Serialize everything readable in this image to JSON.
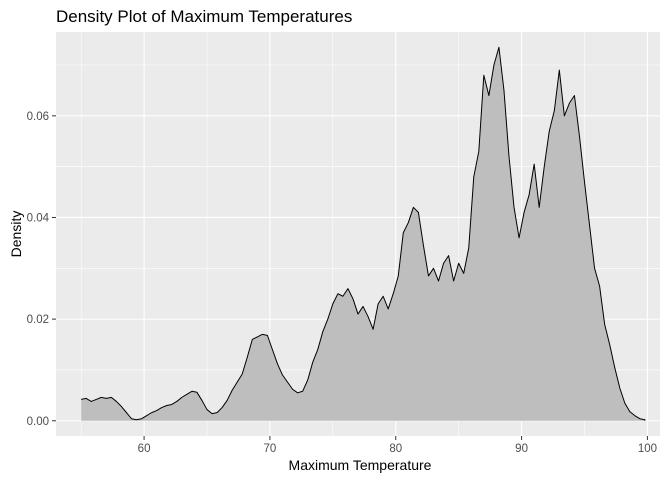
{
  "chart_data": {
    "type": "area",
    "title": "Density Plot of Maximum Temperatures",
    "xlabel": "Maximum Temperature",
    "ylabel": "Density",
    "xlim": [
      53,
      101
    ],
    "ylim": [
      -0.003,
      0.0765
    ],
    "x_ticks": [
      60,
      70,
      80,
      90,
      100
    ],
    "y_ticks": [
      0.0,
      0.02,
      0.04,
      0.06
    ],
    "x_tick_labels": [
      "60",
      "70",
      "80",
      "90",
      "100"
    ],
    "y_tick_labels": [
      "0.00",
      "0.02",
      "0.04",
      "0.06"
    ],
    "grid": true,
    "legend": "none",
    "colors": {
      "panel": "#EBEBEB",
      "grid_major": "#FFFFFF",
      "fill": "#BEBEBE",
      "line": "#000000",
      "tick": "#333333"
    },
    "series": [
      {
        "x": [
          55,
          55.4,
          55.8,
          56.2,
          56.6,
          57.0,
          57.4,
          57.8,
          58.2,
          58.6,
          59.0,
          59.4,
          59.8,
          60.2,
          60.6,
          61.0,
          61.4,
          61.8,
          62.2,
          62.6,
          63.0,
          63.4,
          63.8,
          64.2,
          64.6,
          65.0,
          65.4,
          65.8,
          66.2,
          66.6,
          67.0,
          67.4,
          67.8,
          68.2,
          68.6,
          69.0,
          69.4,
          69.8,
          70.2,
          70.6,
          71.0,
          71.4,
          71.8,
          72.2,
          72.6,
          73.0,
          73.4,
          73.8,
          74.2,
          74.6,
          75.0,
          75.4,
          75.8,
          76.2,
          76.6,
          77.0,
          77.4,
          77.8,
          78.2,
          78.6,
          79.0,
          79.4,
          79.8,
          80.2,
          80.6,
          81.0,
          81.4,
          81.8,
          82.2,
          82.6,
          83.0,
          83.4,
          83.8,
          84.2,
          84.6,
          85.0,
          85.4,
          85.8,
          86.2,
          86.6,
          87.0,
          87.4,
          87.8,
          88.2,
          88.6,
          89.0,
          89.4,
          89.8,
          90.2,
          90.6,
          91.0,
          91.4,
          91.8,
          92.2,
          92.6,
          93.0,
          93.4,
          93.8,
          94.2,
          94.6,
          95.0,
          95.4,
          95.8,
          96.2,
          96.6,
          97.0,
          97.4,
          97.8,
          98.2,
          98.6,
          99.0,
          99.4,
          99.8
        ],
        "y": [
          0.0042,
          0.0044,
          0.0038,
          0.0042,
          0.0046,
          0.0044,
          0.0046,
          0.0038,
          0.0028,
          0.0016,
          0.0004,
          0.0002,
          0.0004,
          0.001,
          0.0016,
          0.002,
          0.0026,
          0.003,
          0.0032,
          0.0038,
          0.0046,
          0.0052,
          0.0058,
          0.0056,
          0.004,
          0.0022,
          0.0014,
          0.0016,
          0.0026,
          0.004,
          0.006,
          0.0076,
          0.0092,
          0.0125,
          0.016,
          0.0165,
          0.017,
          0.0168,
          0.014,
          0.0112,
          0.009,
          0.0076,
          0.0062,
          0.0055,
          0.0058,
          0.008,
          0.0115,
          0.014,
          0.0175,
          0.02,
          0.023,
          0.025,
          0.0245,
          0.026,
          0.024,
          0.021,
          0.0225,
          0.0205,
          0.018,
          0.023,
          0.0245,
          0.022,
          0.025,
          0.0285,
          0.037,
          0.039,
          0.042,
          0.041,
          0.0345,
          0.0285,
          0.03,
          0.0275,
          0.031,
          0.0325,
          0.0275,
          0.031,
          0.029,
          0.034,
          0.048,
          0.053,
          0.068,
          0.064,
          0.07,
          0.0735,
          0.065,
          0.052,
          0.042,
          0.036,
          0.041,
          0.0445,
          0.0505,
          0.042,
          0.05,
          0.057,
          0.061,
          0.069,
          0.06,
          0.0625,
          0.064,
          0.056,
          0.047,
          0.0385,
          0.03,
          0.0265,
          0.019,
          0.015,
          0.0105,
          0.0065,
          0.0035,
          0.0018,
          0.001,
          0.0004,
          0.0002
        ]
      }
    ]
  }
}
